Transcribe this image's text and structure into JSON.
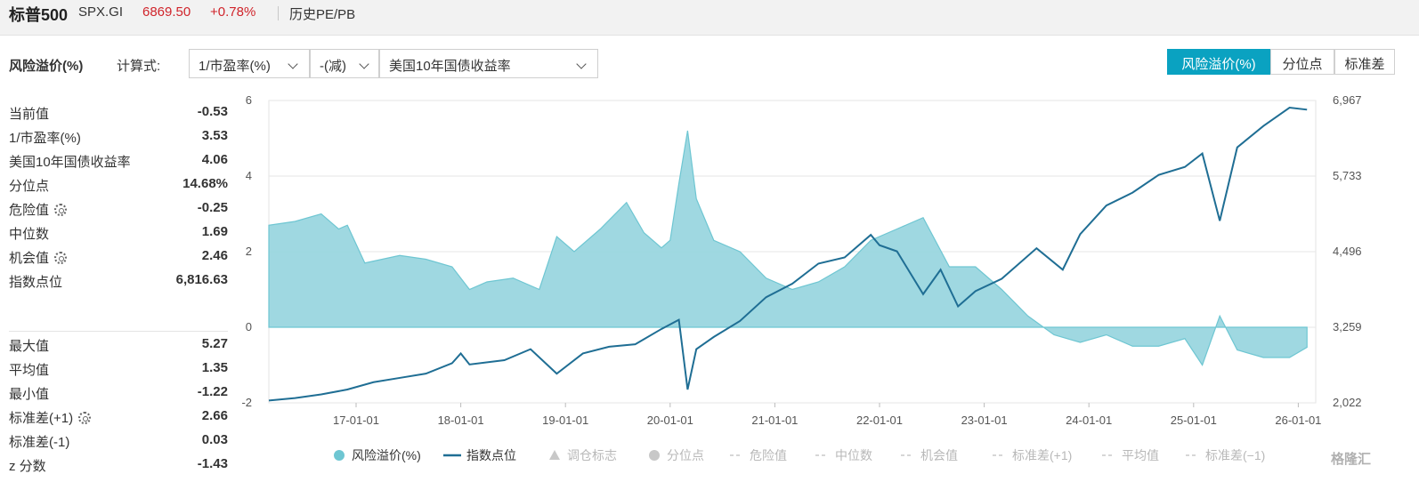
{
  "header": {
    "name": "标普500",
    "code": "SPX.GI",
    "price": "6869.50",
    "change": "+0.78%",
    "history_link": "历史PE/PB"
  },
  "formula": {
    "title": "风险溢价(%)",
    "label": "计算式:",
    "operand1": "1/市盈率(%)",
    "operator": "-(减)",
    "operand2": "美国10年国债收益率"
  },
  "view_toggle": [
    {
      "label": "风险溢价(%)",
      "active": true
    },
    {
      "label": "分位点",
      "active": false
    },
    {
      "label": "标准差",
      "active": false
    }
  ],
  "stats_top": [
    {
      "label": "当前值",
      "value": "-0.53",
      "gear": false
    },
    {
      "label": "1/市盈率(%)",
      "value": "3.53",
      "gear": false
    },
    {
      "label": "美国10年国债收益率",
      "value": "4.06",
      "gear": false
    },
    {
      "label": "分位点",
      "value": "14.68%",
      "gear": false
    },
    {
      "label": "危险值",
      "value": "-0.25",
      "gear": true
    },
    {
      "label": "中位数",
      "value": "1.69",
      "gear": false
    },
    {
      "label": "机会值",
      "value": "2.46",
      "gear": true
    },
    {
      "label": "指数点位",
      "value": "6,816.63",
      "gear": false
    }
  ],
  "stats_bottom": [
    {
      "label": "最大值",
      "value": "5.27",
      "gear": false
    },
    {
      "label": "平均值",
      "value": "1.35",
      "gear": false
    },
    {
      "label": "最小值",
      "value": "-1.22",
      "gear": false
    },
    {
      "label": "标准差(+1)",
      "value": "2.66",
      "gear": true
    },
    {
      "label": "标准差(-1)",
      "value": "0.03",
      "gear": false
    },
    {
      "label": "z 分数",
      "value": "-1.43",
      "gear": false
    }
  ],
  "colors": {
    "premium_fill": "#9ad6df",
    "premium_line": "#6ec6d2",
    "index_line": "#1f6e94",
    "accent": "#0aa2c1",
    "price_up": "#d0242b",
    "legend_disabled": "#b8b8b8"
  },
  "chart_data": {
    "type": "area",
    "x_tick_labels": [
      "17-01-01",
      "18-01-01",
      "19-01-01",
      "20-01-01",
      "21-01-01",
      "22-01-01",
      "23-01-01",
      "24-01-01",
      "25-01-01",
      "26-01-01"
    ],
    "x_range": [
      "2016-03-01",
      "2026-03-01"
    ],
    "y_left_range": [
      -2,
      6
    ],
    "y_left_ticks": [
      "6",
      "4",
      "2",
      "0",
      "-2"
    ],
    "y_right_range": [
      2022,
      6967
    ],
    "y_right_ticks": [
      "6,967",
      "5,733",
      "4,496",
      "3,259",
      "2,022"
    ],
    "grid": true,
    "legend_position": "bottom",
    "series": [
      {
        "name": "风险溢价(%)",
        "axis": "left",
        "style": "area",
        "x": [
          "2016-03",
          "2016-06",
          "2016-09",
          "2016-11",
          "2016-12",
          "2017-02",
          "2017-06",
          "2017-09",
          "2017-12",
          "2018-02",
          "2018-04",
          "2018-07",
          "2018-10",
          "2018-12",
          "2019-02",
          "2019-05",
          "2019-08",
          "2019-10",
          "2019-12",
          "2020-01",
          "2020-02",
          "2020-03",
          "2020-04",
          "2020-06",
          "2020-09",
          "2020-12",
          "2021-03",
          "2021-06",
          "2021-09",
          "2021-12",
          "2022-03",
          "2022-06",
          "2022-09",
          "2022-12",
          "2023-03",
          "2023-06",
          "2023-09",
          "2023-12",
          "2024-03",
          "2024-06",
          "2024-09",
          "2024-12",
          "2025-02",
          "2025-04",
          "2025-06",
          "2025-09",
          "2025-12",
          "2026-02"
        ],
        "values": [
          2.7,
          2.8,
          3.0,
          2.6,
          2.7,
          1.7,
          1.9,
          1.8,
          1.6,
          1.0,
          1.2,
          1.3,
          1.0,
          2.4,
          2.0,
          2.6,
          3.3,
          2.5,
          2.1,
          2.3,
          3.8,
          5.2,
          3.4,
          2.3,
          2.0,
          1.3,
          1.0,
          1.2,
          1.6,
          2.3,
          2.6,
          2.9,
          1.6,
          1.6,
          1.0,
          0.3,
          -0.2,
          -0.4,
          -0.2,
          -0.5,
          -0.5,
          -0.3,
          -1.0,
          0.3,
          -0.6,
          -0.8,
          -0.8,
          -0.53
        ]
      },
      {
        "name": "指数点位",
        "axis": "right",
        "style": "line",
        "x": [
          "2016-03",
          "2016-06",
          "2016-09",
          "2016-12",
          "2017-03",
          "2017-06",
          "2017-09",
          "2017-12",
          "2018-01",
          "2018-02",
          "2018-06",
          "2018-09",
          "2018-12",
          "2019-03",
          "2019-06",
          "2019-09",
          "2019-12",
          "2020-02",
          "2020-03",
          "2020-04",
          "2020-06",
          "2020-09",
          "2020-12",
          "2021-03",
          "2021-06",
          "2021-09",
          "2021-12",
          "2022-01",
          "2022-03",
          "2022-06",
          "2022-08",
          "2022-10",
          "2022-12",
          "2023-03",
          "2023-07",
          "2023-10",
          "2023-12",
          "2024-03",
          "2024-06",
          "2024-09",
          "2024-12",
          "2025-02",
          "2025-04",
          "2025-06",
          "2025-09",
          "2025-12",
          "2026-02"
        ],
        "values": [
          2060,
          2100,
          2160,
          2240,
          2360,
          2430,
          2500,
          2670,
          2830,
          2650,
          2720,
          2900,
          2500,
          2830,
          2940,
          2980,
          3230,
          3380,
          2240,
          2900,
          3100,
          3360,
          3750,
          3970,
          4300,
          4400,
          4770,
          4600,
          4500,
          3800,
          4200,
          3600,
          3850,
          4050,
          4550,
          4200,
          4780,
          5250,
          5460,
          5750,
          5880,
          6100,
          5000,
          6200,
          6550,
          6850,
          6817
        ]
      }
    ],
    "legend": [
      {
        "label": "风险溢价(%)",
        "marker": "circle",
        "enabled": true
      },
      {
        "label": "指数点位",
        "marker": "line",
        "enabled": true
      },
      {
        "label": "调仓标志",
        "marker": "triangle",
        "enabled": false
      },
      {
        "label": "分位点",
        "marker": "circle",
        "enabled": false
      },
      {
        "label": "危险值",
        "marker": "dash",
        "enabled": false
      },
      {
        "label": "中位数",
        "marker": "dash",
        "enabled": false
      },
      {
        "label": "机会值",
        "marker": "dash",
        "enabled": false
      },
      {
        "label": "标准差(+1)",
        "marker": "dash",
        "enabled": false
      },
      {
        "label": "平均值",
        "marker": "dash",
        "enabled": false
      },
      {
        "label": "标准差(−1)",
        "marker": "dash",
        "enabled": false
      }
    ]
  },
  "watermark": "格隆汇"
}
